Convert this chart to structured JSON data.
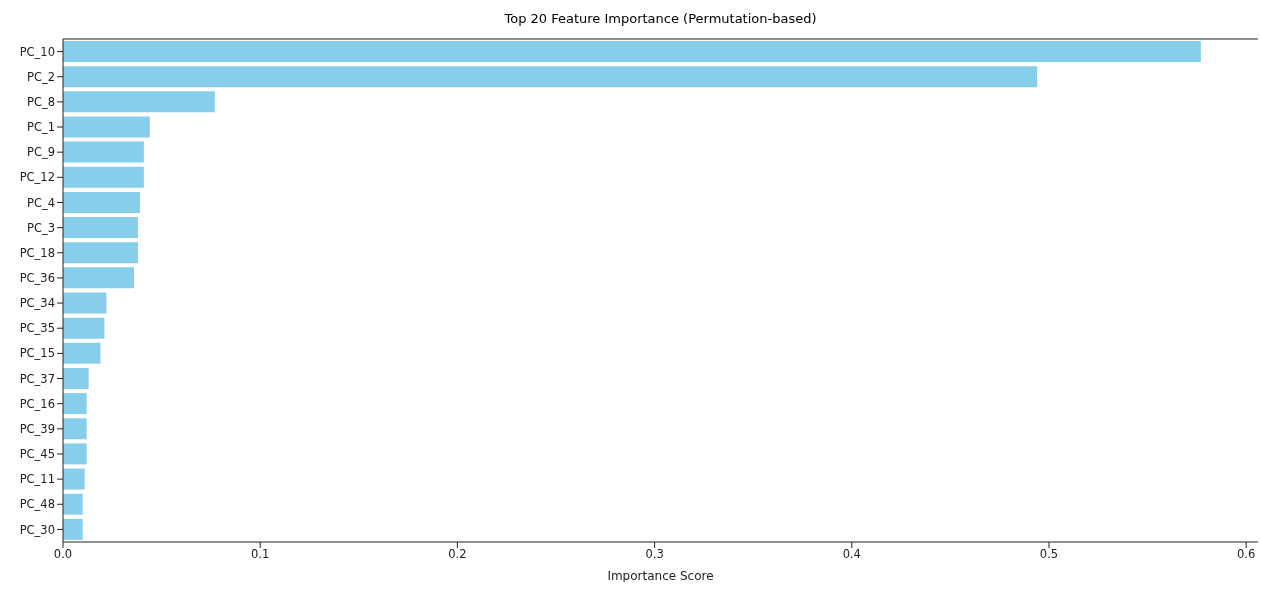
{
  "chart_data": {
    "type": "bar",
    "orientation": "horizontal",
    "title": "Top 20 Feature Importance (Permutation-based)",
    "xlabel": "Importance Score",
    "categories": [
      "PC_10",
      "PC_2",
      "PC_8",
      "PC_1",
      "PC_9",
      "PC_12",
      "PC_4",
      "PC_3",
      "PC_18",
      "PC_36",
      "PC_34",
      "PC_35",
      "PC_15",
      "PC_37",
      "PC_16",
      "PC_39",
      "PC_45",
      "PC_11",
      "PC_48",
      "PC_30"
    ],
    "values": [
      0.577,
      0.494,
      0.077,
      0.044,
      0.041,
      0.041,
      0.039,
      0.038,
      0.038,
      0.036,
      0.022,
      0.021,
      0.019,
      0.013,
      0.012,
      0.012,
      0.012,
      0.011,
      0.01,
      0.01
    ],
    "color": "#87ceeb",
    "xlim": [
      0,
      0.606
    ],
    "xticks": [
      {
        "value": 0,
        "label": "0.0"
      },
      {
        "value": 0.1,
        "label": "0.1"
      },
      {
        "value": 0.2,
        "label": "0.2"
      },
      {
        "value": 0.3,
        "label": "0.3"
      },
      {
        "value": 0.4,
        "label": "0.4"
      },
      {
        "value": 0.5,
        "label": "0.5"
      },
      {
        "value": 0.6,
        "label": "0.6"
      }
    ],
    "grid": false,
    "legend": false
  }
}
